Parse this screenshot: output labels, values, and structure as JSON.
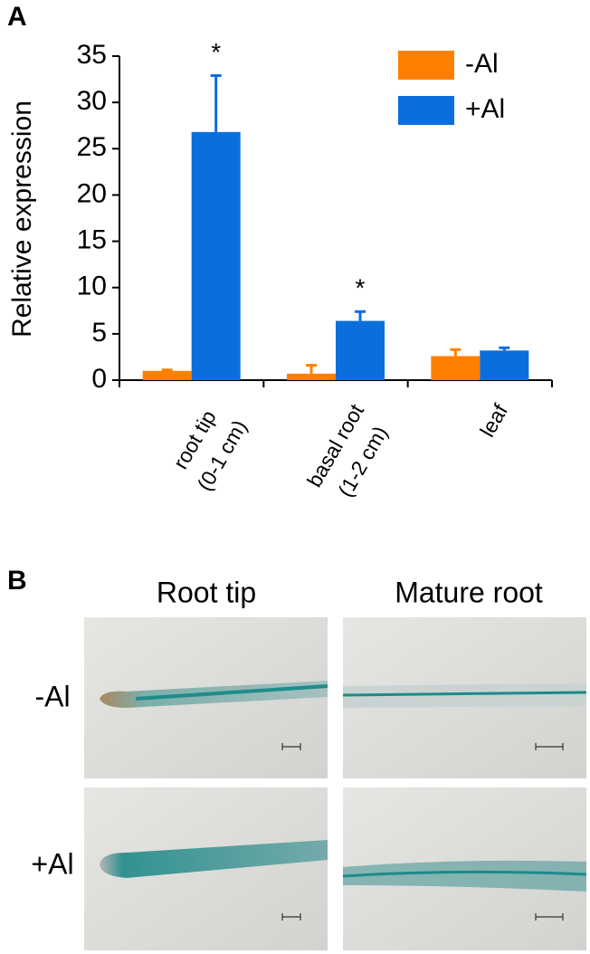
{
  "chart_data": {
    "type": "bar",
    "panel_label": "A",
    "y_label": "Relative expression",
    "categories": [
      "root tip\n(0-1 cm)",
      "basal root\n(1-2 cm)",
      "leaf"
    ],
    "series": [
      {
        "name": "-Al",
        "color": "#ff8000",
        "values": [
          1.0,
          0.7,
          2.6
        ],
        "errors": [
          0.1,
          0.9,
          0.7
        ]
      },
      {
        "name": "+Al",
        "color": "#0a6fdc",
        "values": [
          26.8,
          6.4,
          3.2
        ],
        "errors": [
          6.1,
          1.0,
          0.3
        ],
        "significance": [
          "*",
          "*",
          null
        ]
      }
    ],
    "ylim": [
      0,
      35
    ],
    "yticks": [
      0,
      5,
      10,
      15,
      20,
      25,
      30,
      35
    ],
    "legend": "top-right"
  },
  "panel_b": {
    "panel_label": "B",
    "columns": [
      "Root tip",
      "Mature root"
    ],
    "rows": [
      "-Al",
      "+Al"
    ]
  }
}
